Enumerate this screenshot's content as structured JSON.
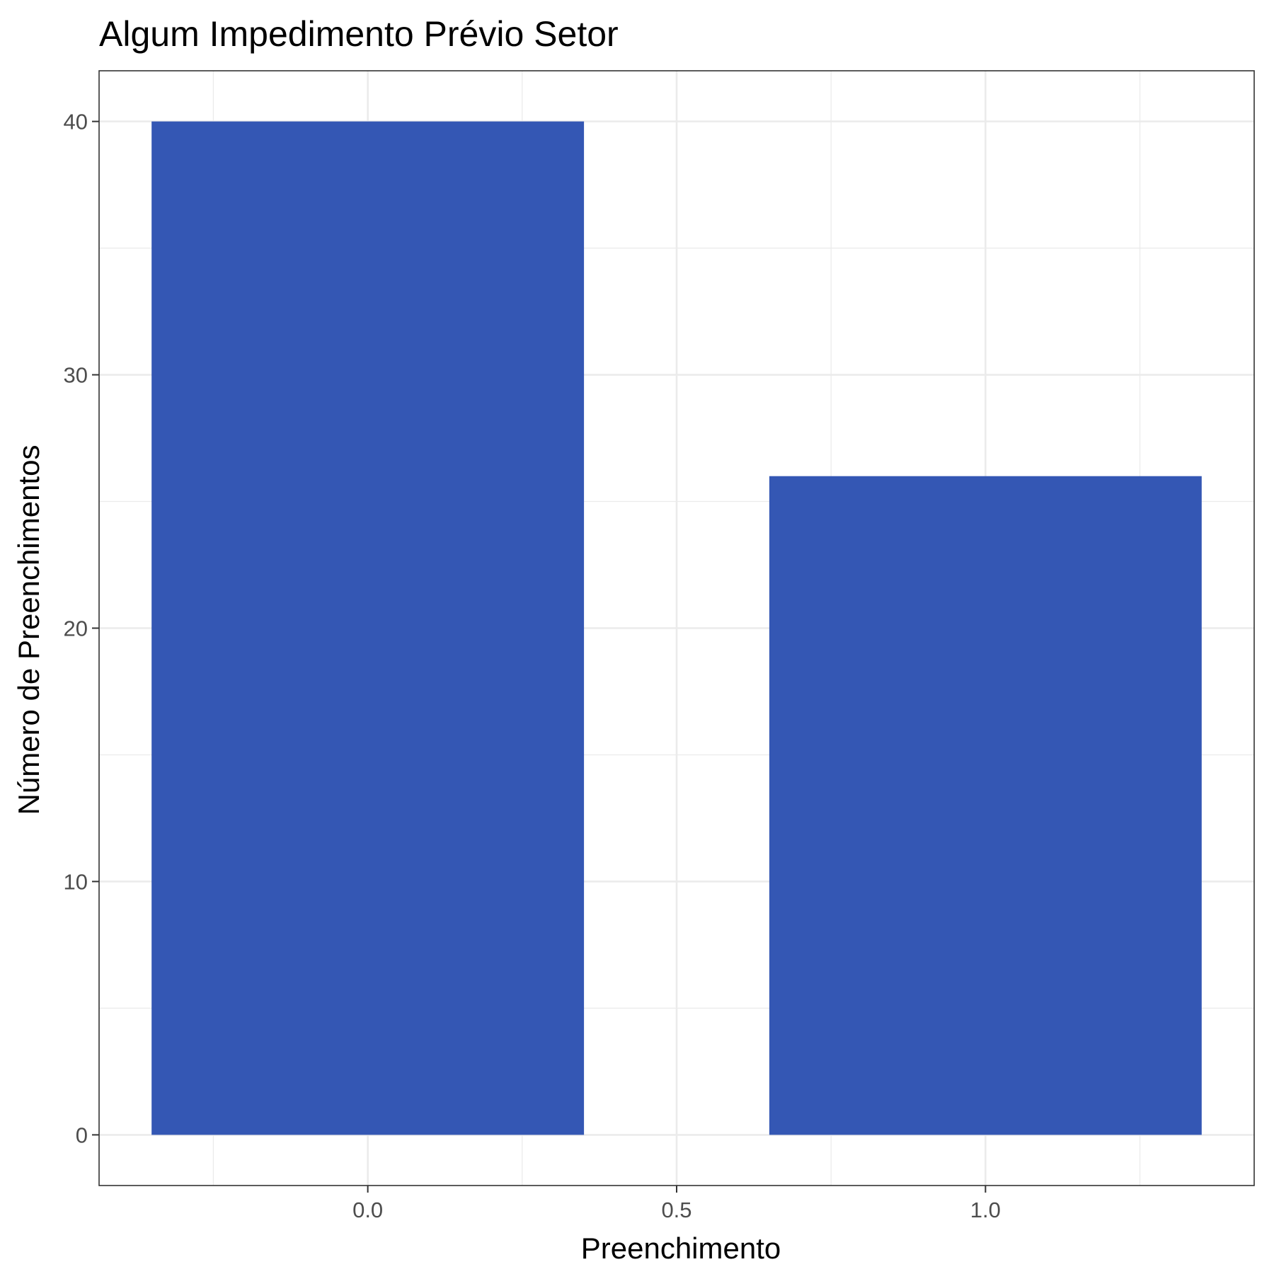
{
  "chart_data": {
    "type": "bar",
    "title": "Algum Impedimento Prévio Setor",
    "xlabel": "Preenchimento",
    "ylabel": "Número de Preenchimentos",
    "x": [
      0,
      1
    ],
    "values": [
      40,
      26
    ],
    "bar_width": 0.7,
    "xlim": [
      -0.435,
      1.435
    ],
    "ylim": [
      -2,
      42
    ],
    "x_ticks": [
      0.0,
      0.5,
      1.0
    ],
    "x_tick_labels": [
      "0.0",
      "0.5",
      "1.0"
    ],
    "x_minor_ticks": [
      -0.25,
      0.25,
      0.75,
      1.25
    ],
    "y_ticks": [
      0,
      10,
      20,
      30,
      40
    ],
    "y_tick_labels": [
      "0",
      "10",
      "20",
      "30",
      "40"
    ],
    "y_minor_ticks": [
      5,
      15,
      25,
      35
    ],
    "grid": true,
    "legend": "none",
    "colors": {
      "bar": "#3457b4",
      "grid": "#ebebeb",
      "panel_border": "#333333",
      "tick": "#333333"
    }
  }
}
